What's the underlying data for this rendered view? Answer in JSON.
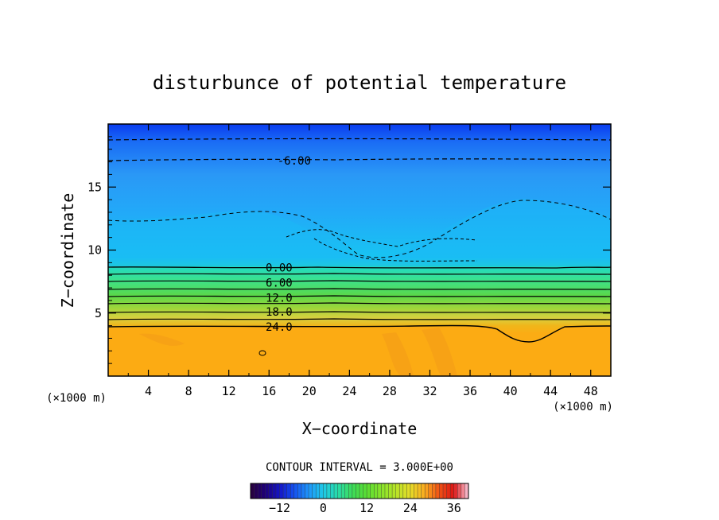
{
  "chart_data": {
    "type": "contour",
    "title": "disturbunce of potential temperature",
    "xlabel": "X−coordinate",
    "ylabel": "Z−coordinate",
    "x_unit": "(×1000 m)",
    "xlim": [
      0,
      50
    ],
    "ylim": [
      0,
      20
    ],
    "x_ticks": [
      4,
      8,
      12,
      16,
      20,
      24,
      28,
      32,
      36,
      40,
      44,
      48
    ],
    "y_ticks": [
      5,
      10,
      15
    ],
    "contour_interval_text": "CONTOUR INTERVAL = 3.000E+00",
    "contour_labels": [
      {
        "text": "-6.00",
        "x": 18.5,
        "z": 17.1
      },
      {
        "text": "0.00",
        "x": 17.0,
        "z": 8.6
      },
      {
        "text": "6.00",
        "x": 17.0,
        "z": 7.4
      },
      {
        "text": "12.0",
        "x": 17.0,
        "z": 6.2
      },
      {
        "text": "18.0",
        "x": 17.0,
        "z": 5.1
      },
      {
        "text": "24.0",
        "x": 17.0,
        "z": 3.9
      }
    ],
    "colorbar": {
      "range": [
        -20,
        40
      ],
      "ticks": [
        "−12",
        "0",
        "12",
        "24",
        "36"
      ],
      "tick_values": [
        -12,
        0,
        12,
        24,
        36
      ]
    }
  }
}
